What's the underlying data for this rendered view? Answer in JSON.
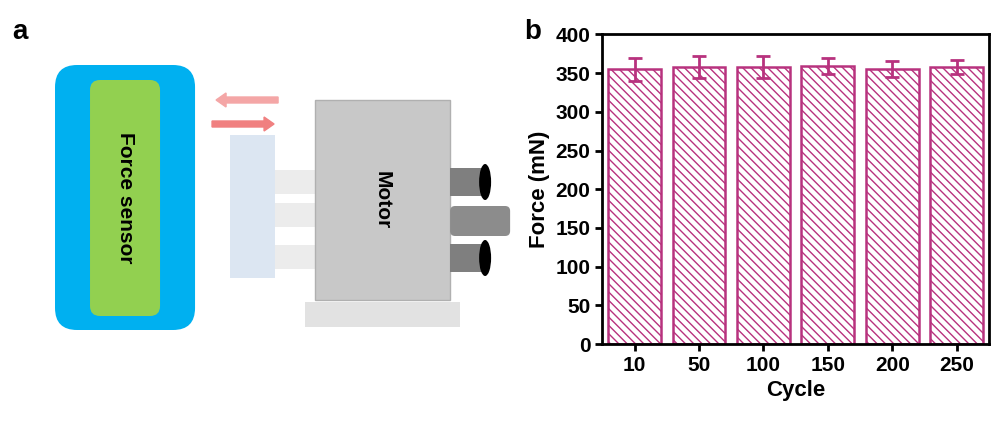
{
  "panel_labels": [
    "a",
    "b"
  ],
  "diagram": {
    "nodes": [
      {
        "label": "Force sensor"
      },
      {
        "label": "Motor"
      }
    ]
  },
  "chart_data": {
    "type": "bar",
    "categories": [
      "10",
      "50",
      "100",
      "150",
      "200",
      "250"
    ],
    "values": [
      355,
      358,
      358,
      359,
      355,
      358
    ],
    "error": [
      15,
      14,
      14,
      10,
      10,
      9
    ],
    "color": "#b8327e",
    "x_label": "Cycle",
    "y_label": "Force (mN)",
    "ylim": [
      0,
      400
    ],
    "yticks": [
      0,
      50,
      100,
      150,
      200,
      250,
      300,
      350,
      400
    ]
  }
}
